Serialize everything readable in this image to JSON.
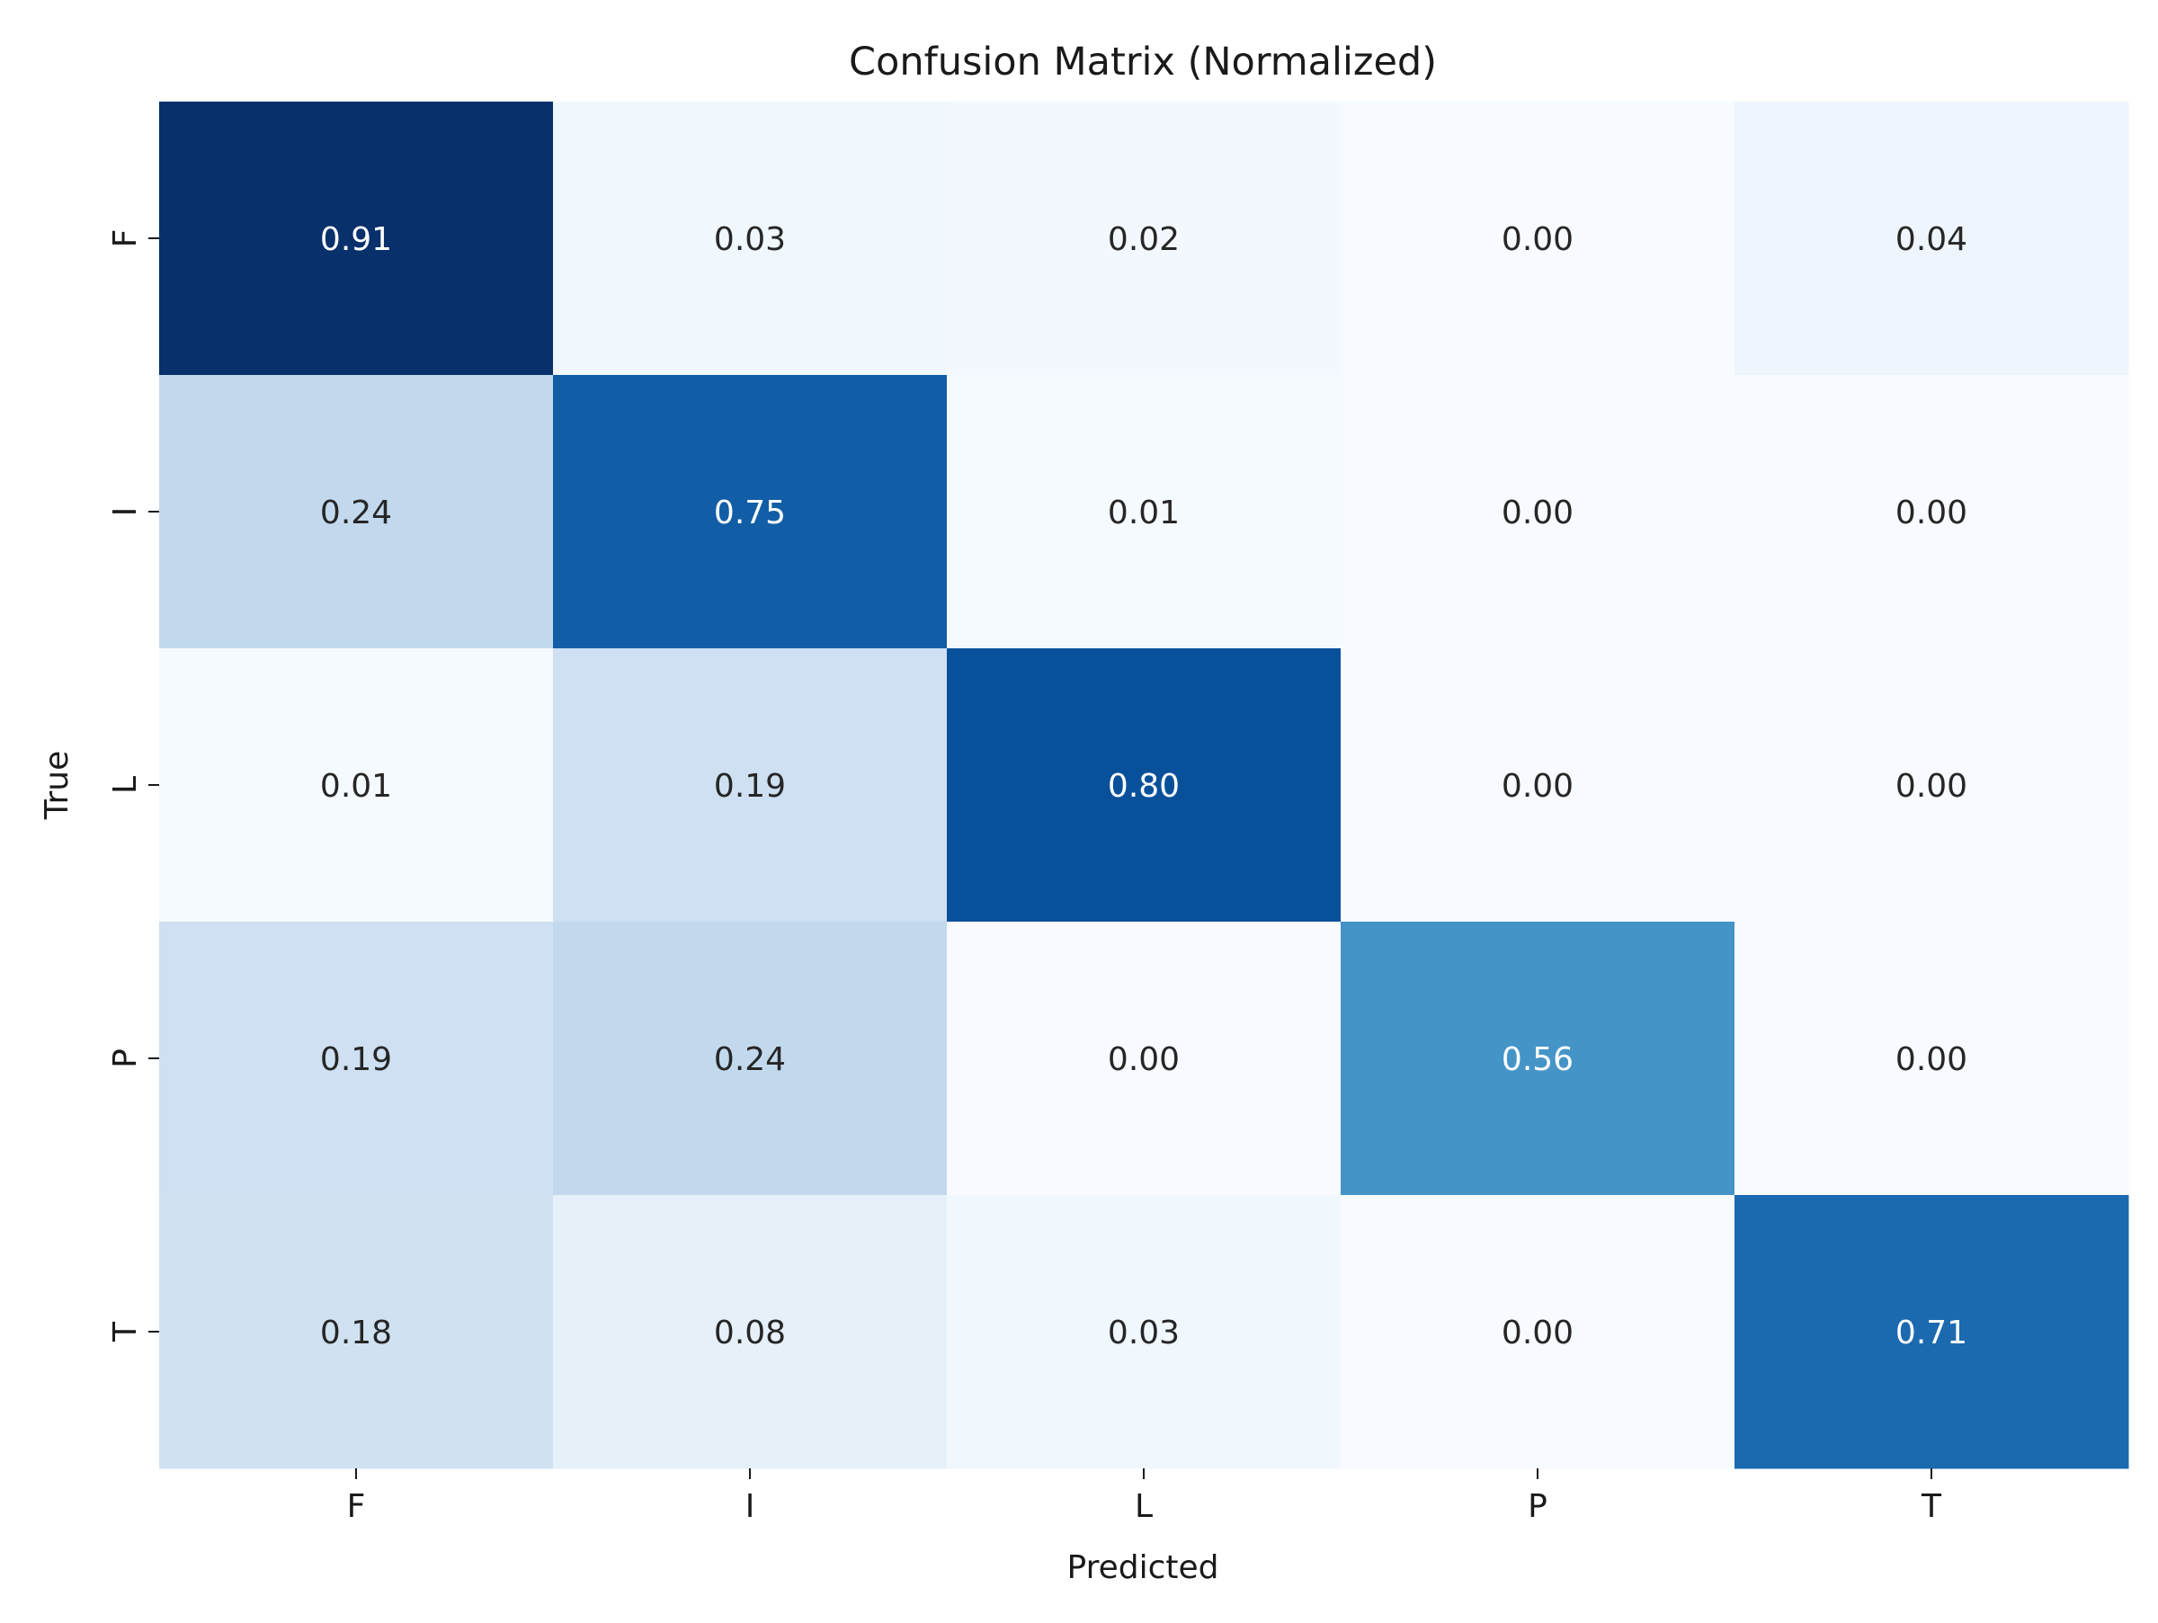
{
  "chart_data": {
    "type": "heatmap",
    "title": "Confusion Matrix (Normalized)",
    "xlabel": "Predicted",
    "ylabel": "True",
    "x_categories": [
      "F",
      "I",
      "L",
      "P",
      "T"
    ],
    "y_categories": [
      "F",
      "I",
      "L",
      "P",
      "T"
    ],
    "values": [
      [
        0.91,
        0.03,
        0.02,
        0.0,
        0.04
      ],
      [
        0.24,
        0.75,
        0.01,
        0.0,
        0.0
      ],
      [
        0.01,
        0.19,
        0.8,
        0.0,
        0.0
      ],
      [
        0.19,
        0.24,
        0.0,
        0.56,
        0.0
      ],
      [
        0.18,
        0.08,
        0.03,
        0.0,
        0.71
      ]
    ],
    "value_format": "0.00",
    "colormap": "Blues",
    "vmin": 0,
    "vmax": 0.91,
    "colorbar": false,
    "grid": false
  }
}
